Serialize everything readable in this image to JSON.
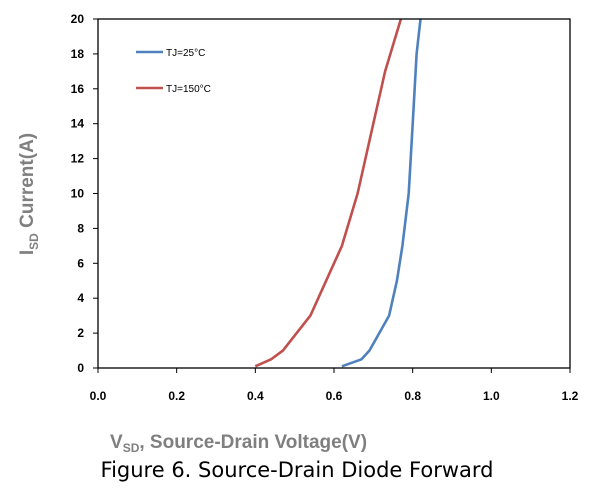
{
  "chart_data": {
    "type": "line",
    "title": "",
    "xlabel": {
      "main": "V",
      "sub": "SD",
      "rest": ", Source-Drain Voltage(V)"
    },
    "ylabel": {
      "main": "I",
      "sub": "SD",
      "rest": " Current(A)"
    },
    "xlim": [
      0,
      1.2
    ],
    "ylim": [
      0,
      20
    ],
    "x_ticks": [
      "0.0",
      "0.2",
      "0.4",
      "0.6",
      "0.8",
      "1.0",
      "1.2"
    ],
    "y_ticks": [
      "0",
      "2",
      "4",
      "6",
      "8",
      "10",
      "12",
      "14",
      "16",
      "18",
      "20"
    ],
    "grid": false,
    "legend_position": "top-left",
    "series": [
      {
        "name": "TJ=25°C",
        "color": "#4f81bd",
        "x": [
          0.62,
          0.67,
          0.69,
          0.74,
          0.76,
          0.774,
          0.79,
          0.8,
          0.81,
          0.82
        ],
        "y": [
          0.1,
          0.5,
          1,
          3,
          5,
          7,
          10,
          14,
          18,
          20
        ]
      },
      {
        "name": "TJ=150°C",
        "color": "#c0504d",
        "x": [
          0.4,
          0.44,
          0.47,
          0.54,
          0.58,
          0.62,
          0.66,
          0.7,
          0.73,
          0.77
        ],
        "y": [
          0.1,
          0.5,
          1,
          3,
          5,
          7,
          10,
          14,
          17,
          20
        ]
      }
    ]
  },
  "caption": "Figure 6. Source-Drain Diode Forward"
}
